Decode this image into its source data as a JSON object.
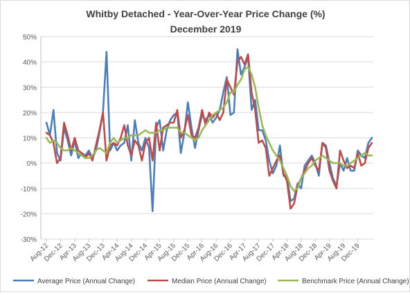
{
  "chart_data": {
    "type": "line",
    "title": "Whitby Detached - Year-Over-Year Price Change (%)",
    "subtitle": "December 2019",
    "xlabel": "",
    "ylabel": "",
    "ylim": [
      -30,
      50
    ],
    "y_ticks": [
      "50%",
      "40%",
      "30%",
      "20%",
      "10%",
      "0%",
      "-10%",
      "-20%",
      "-30%"
    ],
    "x_ticks": [
      "Aug-12",
      "Dec-12",
      "Apr-13",
      "Aug-13",
      "Dec-13",
      "Apr-14",
      "Aug-14",
      "Dec-14",
      "Apr-15",
      "Aug-15",
      "Dec-15",
      "Apr-16",
      "Aug-16",
      "Dec-16",
      "Apr-17",
      "Aug-17",
      "Dec-17",
      "Apr-18",
      "Aug-18",
      "Dec-18",
      "Apr-19",
      "Aug-19",
      "Dec-19"
    ],
    "grid": true,
    "legend_position": "bottom",
    "x_start": "Aug-12",
    "series": [
      {
        "name": "Average Price (Annual Change)",
        "color": "#4a7ebb",
        "values": [
          16,
          11,
          21,
          4,
          1,
          14,
          9,
          3,
          9,
          2,
          4,
          3,
          5,
          2,
          5,
          12,
          20,
          44,
          5,
          8,
          5,
          7,
          8,
          15,
          1,
          17,
          8,
          5,
          10,
          6,
          -19,
          14,
          17,
          5,
          13,
          17,
          19,
          20,
          4,
          12,
          24,
          14,
          6,
          13,
          19,
          17,
          19,
          16,
          18,
          21,
          28,
          34,
          19,
          20,
          45,
          35,
          38,
          42,
          21,
          25,
          13,
          13,
          9,
          1,
          -4,
          -1,
          7,
          -5,
          -5,
          -15,
          -14,
          -8,
          -10,
          -1,
          1,
          3,
          0,
          -5,
          8,
          7,
          0,
          -6,
          -9,
          0,
          -3,
          2,
          -3,
          -3,
          5,
          3,
          2,
          8,
          10
        ]
      },
      {
        "name": "Median Price (Annual Change)",
        "color": "#be4b48",
        "values": [
          12,
          11,
          8,
          0,
          2,
          16,
          11,
          5,
          10,
          5,
          4,
          2,
          4,
          1,
          7,
          13,
          20,
          1,
          7,
          8,
          7,
          10,
          15,
          7,
          3,
          9,
          7,
          1,
          8,
          10,
          1,
          16,
          5,
          14,
          15,
          16,
          16,
          21,
          10,
          13,
          19,
          11,
          10,
          14,
          21,
          15,
          20,
          18,
          20,
          17,
          20,
          33,
          30,
          27,
          40,
          42,
          39,
          43,
          28,
          21,
          8,
          9,
          6,
          -5,
          -2,
          1,
          3,
          -4,
          -7,
          -18,
          -16,
          -9,
          -6,
          -3,
          0,
          2,
          -1,
          -3,
          8,
          6,
          -3,
          -7,
          -10,
          5,
          1,
          -2,
          -1,
          -2,
          4,
          -1,
          0,
          6,
          8
        ]
      },
      {
        "name": "Benchmark Price (Annual Change)",
        "color": "#98b954",
        "values": [
          10,
          8,
          9,
          8,
          6,
          5,
          5,
          6,
          5,
          4,
          3,
          2,
          2,
          3,
          5,
          6,
          5,
          4,
          8,
          10,
          8,
          9,
          10,
          10,
          11,
          11,
          11,
          12,
          13,
          12,
          12,
          12,
          13,
          13,
          14,
          14,
          14,
          14,
          12,
          12,
          11,
          10,
          9,
          10,
          13,
          15,
          17,
          19,
          20,
          21,
          22,
          24,
          28,
          28,
          31,
          33,
          37,
          38,
          35,
          30,
          22,
          15,
          11,
          8,
          5,
          3,
          1,
          -2,
          -5,
          -9,
          -11,
          -10,
          -6,
          -4,
          -2,
          -1,
          1,
          2,
          3,
          2,
          1,
          0,
          0,
          0,
          -1,
          -1,
          0,
          1,
          2,
          3,
          4,
          3,
          3
        ]
      }
    ]
  }
}
